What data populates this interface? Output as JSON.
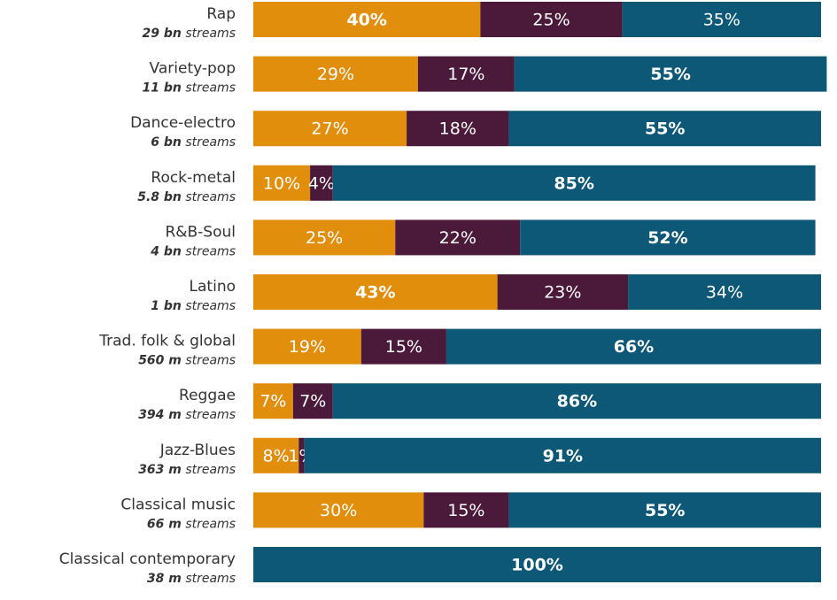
{
  "chart_data": {
    "type": "stacked_bar_horizontal",
    "categories": [
      "Rap",
      "Variety-pop",
      "Dance-electro",
      "Rock-metal",
      "R&B-Soul",
      "Latino",
      "Trad. folk & global",
      "Reggae",
      "Jazz-Blues",
      "Classical music",
      "Classical contemporary"
    ],
    "volumes": [
      "29 bn",
      "11 bn",
      "6 bn",
      "5.8 bn",
      "4 bn",
      "1 bn",
      "560 m",
      "394 m",
      "363 m",
      "66 m",
      "38 m"
    ],
    "volume_unit": "streams",
    "xlim": [
      0,
      100
    ],
    "series": [
      {
        "color": "#e08e0b",
        "values": [
          40,
          29,
          27,
          10,
          25,
          43,
          19,
          7,
          8,
          30,
          null
        ],
        "value_labels": [
          "40%",
          "29%",
          "27%",
          "10%",
          "25%",
          "43%",
          "19%",
          "7%",
          "8%",
          "30%",
          null
        ]
      },
      {
        "color": "#4b1a3a",
        "values": [
          25,
          17,
          18,
          4,
          22,
          23,
          15,
          7,
          1,
          15,
          null
        ],
        "value_labels": [
          "25%",
          "17%",
          "18%",
          "4%",
          "22%",
          "23%",
          "15%",
          "7%",
          "1%",
          "15%",
          null
        ]
      },
      {
        "color": "#0d5876",
        "values": [
          35,
          55,
          55,
          85,
          52,
          34,
          66,
          86,
          91,
          55,
          100
        ],
        "value_labels": [
          "35%",
          "55%",
          "55%",
          "85%",
          "52%",
          "34%",
          "66%",
          "86%",
          "91%",
          "55%",
          "100%"
        ]
      }
    ]
  }
}
